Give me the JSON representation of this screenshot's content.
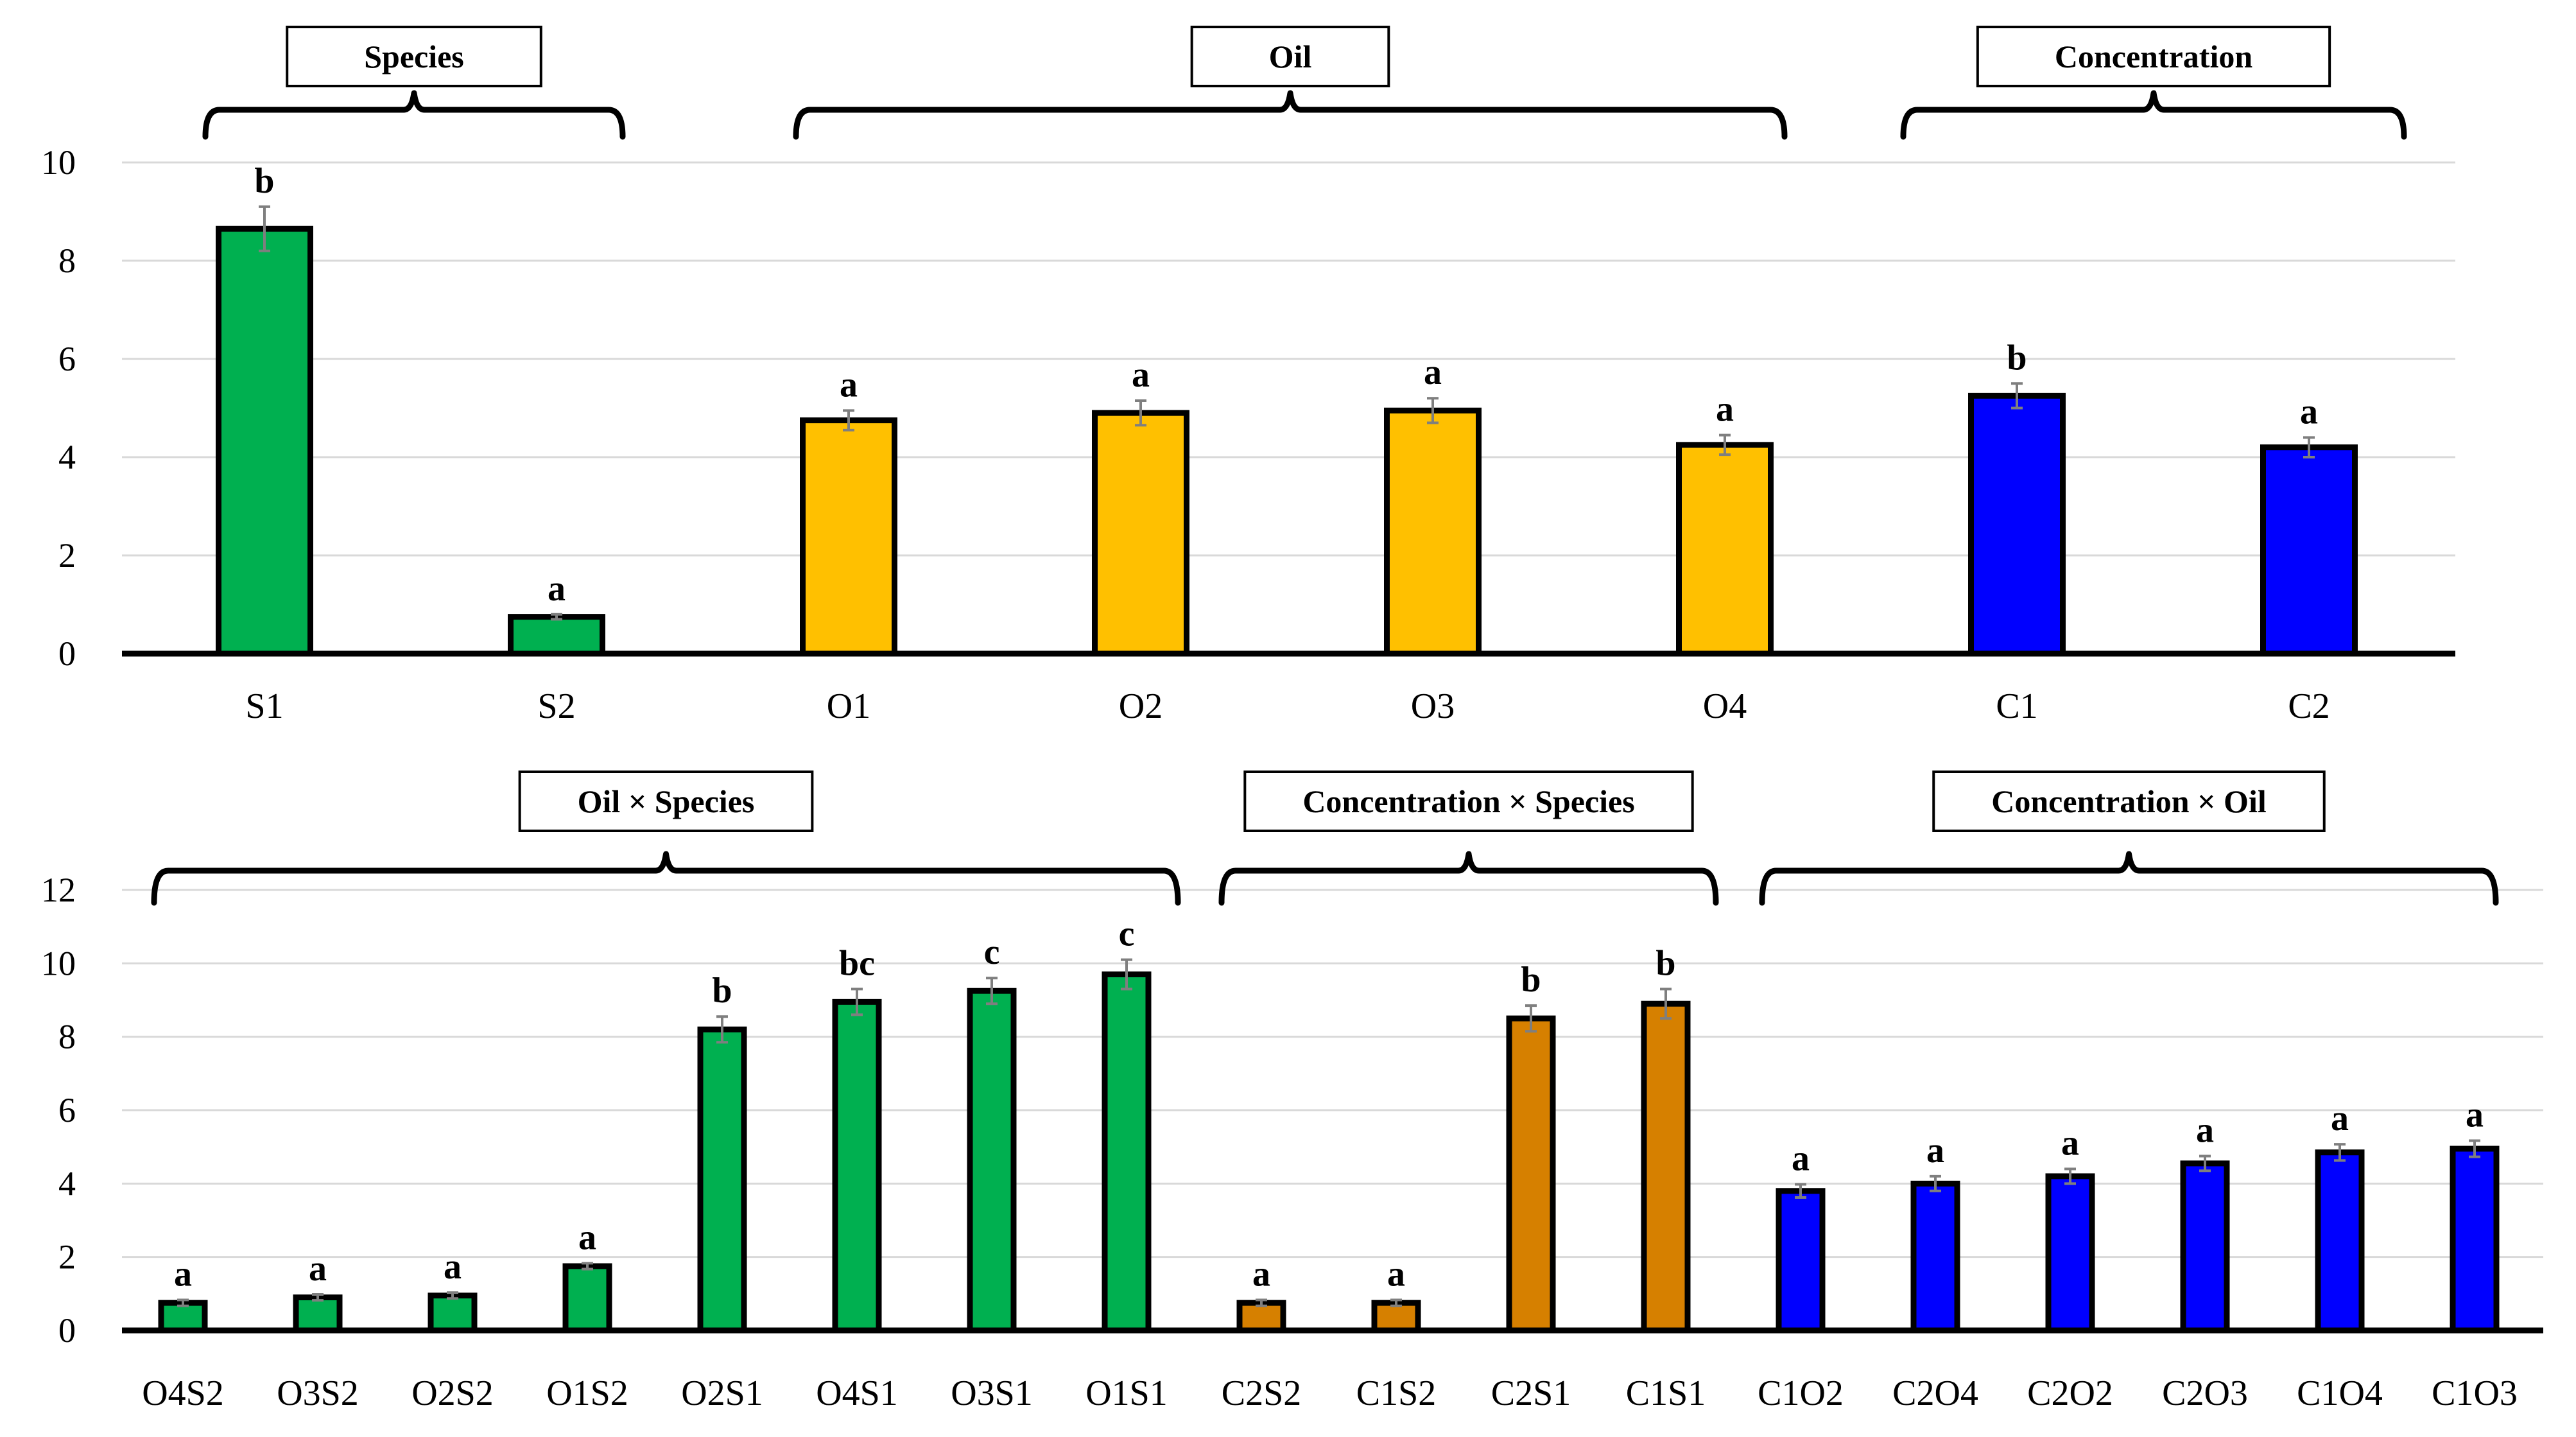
{
  "colors": {
    "green": "#00b050",
    "yellow": "#ffc000",
    "blue": "#0000ff",
    "orange": "#d68000"
  },
  "chart_data": [
    {
      "type": "bar",
      "ylim": [
        0,
        10
      ],
      "yticks": [
        0,
        2,
        4,
        6,
        8,
        10
      ],
      "grid": true,
      "groups": [
        {
          "title": "Species",
          "start": 0,
          "end": 1
        },
        {
          "title": "Oil",
          "start": 2,
          "end": 5
        },
        {
          "title": "Concentration",
          "start": 6,
          "end": 7
        }
      ],
      "categories": [
        "S1",
        "S2",
        "O1",
        "O2",
        "O3",
        "O4",
        "C1",
        "C2"
      ],
      "values": [
        8.65,
        0.75,
        4.75,
        4.9,
        4.95,
        4.25,
        5.25,
        4.2
      ],
      "errors": [
        0.45,
        0.05,
        0.2,
        0.25,
        0.25,
        0.2,
        0.25,
        0.2
      ],
      "letters": [
        "b",
        "a",
        "a",
        "a",
        "a",
        "a",
        "b",
        "a"
      ],
      "bar_colors": [
        "green",
        "green",
        "yellow",
        "yellow",
        "yellow",
        "yellow",
        "blue",
        "blue"
      ]
    },
    {
      "type": "bar",
      "ylim": [
        0,
        12
      ],
      "yticks": [
        0,
        2,
        4,
        6,
        8,
        10,
        12
      ],
      "grid": true,
      "groups": [
        {
          "title": "Oil × Species",
          "start": 0,
          "end": 7
        },
        {
          "title": "Concentration × Species",
          "start": 8,
          "end": 11
        },
        {
          "title": "Concentration × Oil",
          "start": 12,
          "end": 17
        }
      ],
      "categories": [
        "O4S2",
        "O3S2",
        "O2S2",
        "O1S2",
        "O2S1",
        "O4S1",
        "O3S1",
        "O1S1",
        "C2S2",
        "C1S2",
        "C2S1",
        "C1S1",
        "C1O2",
        "C2O4",
        "C2O2",
        "C2O3",
        "C1O4",
        "C1O3"
      ],
      "values": [
        0.75,
        0.9,
        0.95,
        1.75,
        8.2,
        8.95,
        9.25,
        9.7,
        0.75,
        0.75,
        8.5,
        8.9,
        3.8,
        4.0,
        4.2,
        4.55,
        4.85,
        4.95
      ],
      "errors": [
        0.08,
        0.08,
        0.08,
        0.08,
        0.35,
        0.35,
        0.35,
        0.4,
        0.08,
        0.08,
        0.35,
        0.4,
        0.18,
        0.2,
        0.2,
        0.2,
        0.22,
        0.22
      ],
      "letters": [
        "a",
        "a",
        "a",
        "a",
        "b",
        "bc",
        "c",
        "c",
        "a",
        "a",
        "b",
        "b",
        "a",
        "a",
        "a",
        "a",
        "a",
        "a"
      ],
      "bar_colors": [
        "green",
        "green",
        "green",
        "green",
        "green",
        "green",
        "green",
        "green",
        "orange",
        "orange",
        "orange",
        "orange",
        "blue",
        "blue",
        "blue",
        "blue",
        "blue",
        "blue"
      ]
    }
  ]
}
